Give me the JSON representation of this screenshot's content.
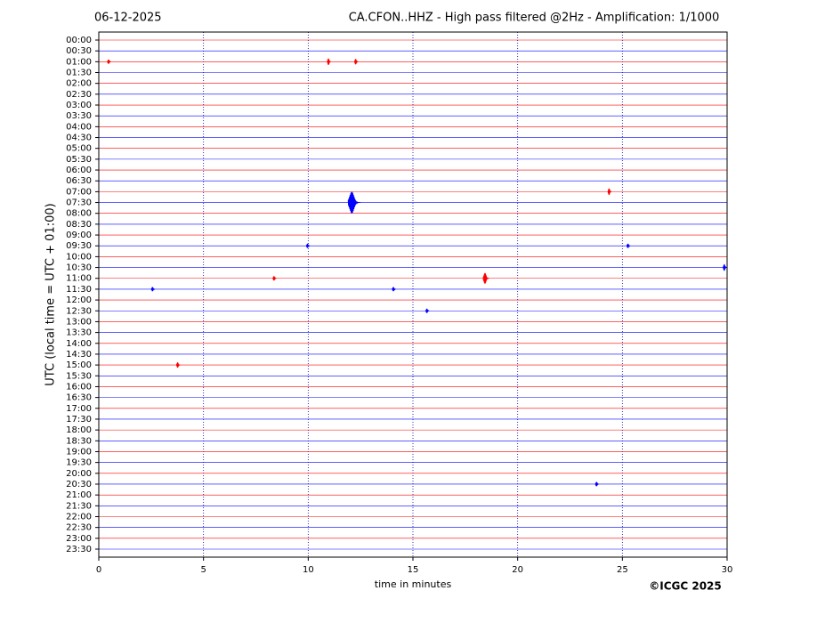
{
  "chart_data": {
    "type": "helicorder",
    "date": "06-12-2025",
    "title": "CA.CFON..HHZ - High pass filtered @2Hz - Amplification: 1/1000",
    "y_label": "UTC (local time = UTC + 01:00)",
    "x_label": "time in minutes",
    "credit": "©ICGC 2025",
    "categories": [
      "00:00",
      "00:30",
      "01:00",
      "01:30",
      "02:00",
      "02:30",
      "03:00",
      "03:30",
      "04:00",
      "04:30",
      "05:00",
      "05:30",
      "06:00",
      "06:30",
      "07:00",
      "07:30",
      "08:00",
      "08:30",
      "09:00",
      "09:30",
      "10:00",
      "10:30",
      "11:00",
      "11:30",
      "12:00",
      "12:30",
      "13:00",
      "13:30",
      "14:00",
      "14:30",
      "15:00",
      "15:30",
      "16:00",
      "16:30",
      "17:00",
      "17:30",
      "18:00",
      "18:30",
      "19:00",
      "19:30",
      "20:00",
      "20:30",
      "21:00",
      "21:30",
      "22:00",
      "22:30",
      "23:00",
      "23:30"
    ],
    "colors": [
      "#ff0000",
      "#0000ff"
    ],
    "xlim": [
      0,
      30
    ],
    "xticks": [
      0,
      5,
      10,
      15,
      20,
      25,
      30
    ],
    "grid": true,
    "events": [
      {
        "category": "01:00",
        "x": 0.5,
        "amplitude": 0.2
      },
      {
        "category": "01:00",
        "x": 11.0,
        "amplitude": 0.3
      },
      {
        "category": "01:00",
        "x": 12.3,
        "amplitude": 0.25
      },
      {
        "category": "07:00",
        "x": 24.4,
        "amplitude": 0.3
      },
      {
        "category": "07:30",
        "x": 12.2,
        "amplitude": 1.0
      },
      {
        "category": "09:30",
        "x": 10.0,
        "amplitude": 0.2
      },
      {
        "category": "09:30",
        "x": 25.3,
        "amplitude": 0.2
      },
      {
        "category": "10:30",
        "x": 29.9,
        "amplitude": 0.3
      },
      {
        "category": "11:00",
        "x": 8.4,
        "amplitude": 0.2
      },
      {
        "category": "11:00",
        "x": 18.5,
        "amplitude": 0.5
      },
      {
        "category": "11:30",
        "x": 2.6,
        "amplitude": 0.2
      },
      {
        "category": "11:30",
        "x": 14.1,
        "amplitude": 0.2
      },
      {
        "category": "12:30",
        "x": 15.7,
        "amplitude": 0.2
      },
      {
        "category": "15:00",
        "x": 3.8,
        "amplitude": 0.25
      },
      {
        "category": "20:30",
        "x": 23.8,
        "amplitude": 0.2
      }
    ]
  }
}
